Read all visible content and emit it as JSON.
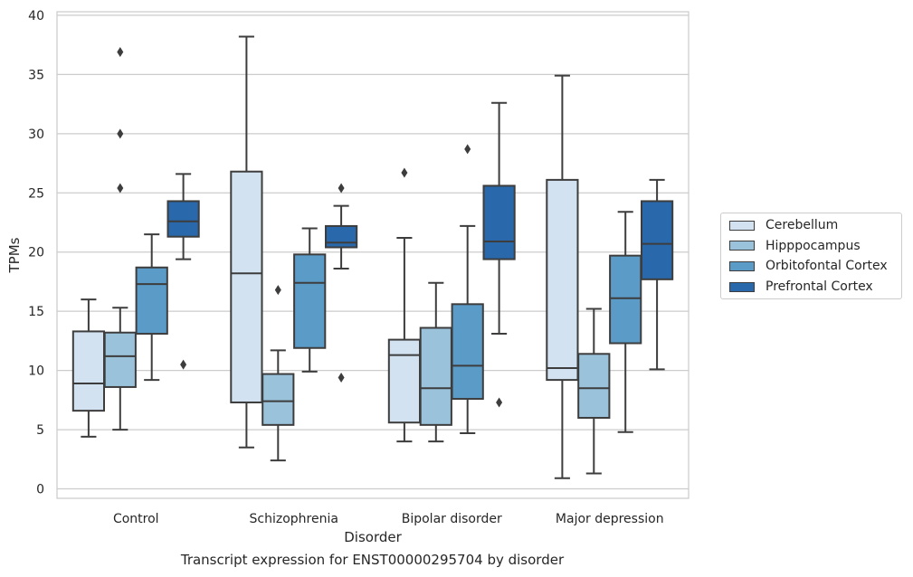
{
  "chart_data": {
    "type": "boxplot",
    "title": "",
    "caption": "Transcript expression for ENST00000295704 by disorder",
    "xlabel": "Disorder",
    "ylabel": "TPMs",
    "ylim": [
      -0.8,
      40.3
    ],
    "yticks": [
      0,
      5,
      10,
      15,
      20,
      25,
      30,
      35,
      40
    ],
    "grid": "horizontal",
    "legend_position": "right",
    "categories": [
      "Control",
      "Schizophrenia",
      "Bipolar disorder",
      "Major depression"
    ],
    "series": [
      {
        "name": "Cerebellum",
        "color": "#d2e2f1",
        "boxes": [
          {
            "whislo": 4.4,
            "q1": 6.6,
            "med": 8.9,
            "q3": 13.3,
            "whishi": 16.0,
            "fliers": []
          },
          {
            "whislo": 3.5,
            "q1": 7.3,
            "med": 18.2,
            "q3": 26.8,
            "whishi": 38.2,
            "fliers": []
          },
          {
            "whislo": 4.0,
            "q1": 5.6,
            "med": 11.3,
            "q3": 12.6,
            "whishi": 21.2,
            "fliers": [
              26.7
            ]
          },
          {
            "whislo": 0.9,
            "q1": 9.2,
            "med": 10.2,
            "q3": 26.1,
            "whishi": 34.9,
            "fliers": []
          }
        ]
      },
      {
        "name": "Hipppocampus",
        "color": "#9ac2db",
        "boxes": [
          {
            "whislo": 5.0,
            "q1": 8.6,
            "med": 11.2,
            "q3": 13.2,
            "whishi": 15.3,
            "fliers": [
              25.4,
              30.0,
              36.9
            ]
          },
          {
            "whislo": 2.4,
            "q1": 5.4,
            "med": 7.4,
            "q3": 9.7,
            "whishi": 11.7,
            "fliers": [
              16.8
            ]
          },
          {
            "whislo": 4.0,
            "q1": 5.4,
            "med": 8.5,
            "q3": 13.6,
            "whishi": 17.4,
            "fliers": []
          },
          {
            "whislo": 1.3,
            "q1": 6.0,
            "med": 8.5,
            "q3": 11.4,
            "whishi": 15.2,
            "fliers": []
          }
        ]
      },
      {
        "name": "Orbitofontal Cortex",
        "color": "#5b9bc8",
        "boxes": [
          {
            "whislo": 9.2,
            "q1": 13.1,
            "med": 17.3,
            "q3": 18.7,
            "whishi": 21.5,
            "fliers": []
          },
          {
            "whislo": 9.9,
            "q1": 11.9,
            "med": 17.4,
            "q3": 19.8,
            "whishi": 22.0,
            "fliers": []
          },
          {
            "whislo": 4.7,
            "q1": 7.6,
            "med": 10.4,
            "q3": 15.6,
            "whishi": 22.2,
            "fliers": [
              28.7
            ]
          },
          {
            "whislo": 4.8,
            "q1": 12.3,
            "med": 16.1,
            "q3": 19.7,
            "whishi": 23.4,
            "fliers": []
          }
        ]
      },
      {
        "name": "Prefrontal Cortex",
        "color": "#2969ab",
        "boxes": [
          {
            "whislo": 19.4,
            "q1": 21.3,
            "med": 22.6,
            "q3": 24.3,
            "whishi": 26.6,
            "fliers": [
              10.5
            ]
          },
          {
            "whislo": 18.6,
            "q1": 20.4,
            "med": 20.8,
            "q3": 22.2,
            "whishi": 23.9,
            "fliers": [
              9.4,
              25.4
            ]
          },
          {
            "whislo": 13.1,
            "q1": 19.4,
            "med": 20.9,
            "q3": 25.6,
            "whishi": 32.6,
            "fliers": [
              7.3
            ]
          },
          {
            "whislo": 10.1,
            "q1": 17.7,
            "med": 20.7,
            "q3": 24.3,
            "whishi": 26.1,
            "fliers": []
          }
        ]
      }
    ]
  }
}
